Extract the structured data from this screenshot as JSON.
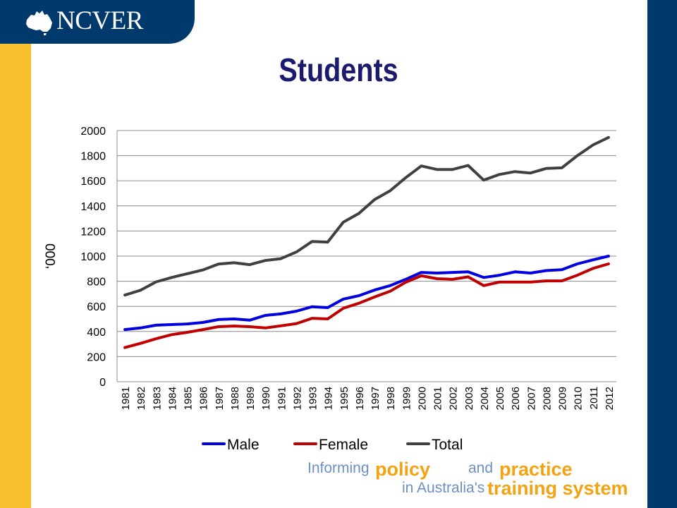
{
  "brand": {
    "logo_text": "NCVER"
  },
  "page": {
    "title": "Students"
  },
  "footer": {
    "w1": "Informing",
    "w2": "policy",
    "w3": "and",
    "w4": "practice",
    "w5": "in Australia's",
    "w6": "training system"
  },
  "colors": {
    "navy": "#003a6c",
    "gold": "#f6bf2c",
    "title": "#1a1a6e",
    "footer_blue": "#6e8fc4",
    "footer_orange": "#f3a312"
  },
  "chart_data": {
    "type": "line",
    "title": "",
    "xlabel": "",
    "ylabel": "‘000",
    "ylim": [
      0,
      2000
    ],
    "yticks": [
      0,
      200,
      400,
      600,
      800,
      1000,
      1200,
      1400,
      1600,
      1800,
      2000
    ],
    "grid": true,
    "legend": "bottom",
    "categories": [
      "1981",
      "1982",
      "1983",
      "1984",
      "1985",
      "1986",
      "1987",
      "1988",
      "1989",
      "1990",
      "1991",
      "1992",
      "1993",
      "1994",
      "1995",
      "1996",
      "1997",
      "1998",
      "1999",
      "2000",
      "2001",
      "2002",
      "2003",
      "2004",
      "2005",
      "2006",
      "2007",
      "2008",
      "2009",
      "2010",
      "2011",
      "2012"
    ],
    "series": [
      {
        "name": "Male",
        "color": "#0000e0",
        "values": [
          415,
          428,
          450,
          455,
          460,
          472,
          495,
          500,
          490,
          528,
          540,
          562,
          597,
          590,
          658,
          685,
          730,
          765,
          815,
          870,
          865,
          870,
          875,
          830,
          848,
          875,
          865,
          885,
          892,
          938,
          970,
          1000
        ]
      },
      {
        "name": "Female",
        "color": "#c00000",
        "values": [
          272,
          305,
          342,
          375,
          393,
          415,
          438,
          443,
          438,
          428,
          445,
          463,
          505,
          500,
          585,
          625,
          675,
          720,
          792,
          843,
          820,
          815,
          835,
          765,
          793,
          793,
          793,
          803,
          803,
          848,
          902,
          938
        ]
      },
      {
        "name": "Total",
        "color": "#404040",
        "values": [
          690,
          728,
          795,
          830,
          860,
          890,
          937,
          947,
          932,
          965,
          980,
          1033,
          1117,
          1112,
          1270,
          1340,
          1450,
          1520,
          1625,
          1718,
          1690,
          1690,
          1722,
          1605,
          1650,
          1673,
          1662,
          1698,
          1703,
          1800,
          1885,
          1945
        ]
      }
    ]
  }
}
